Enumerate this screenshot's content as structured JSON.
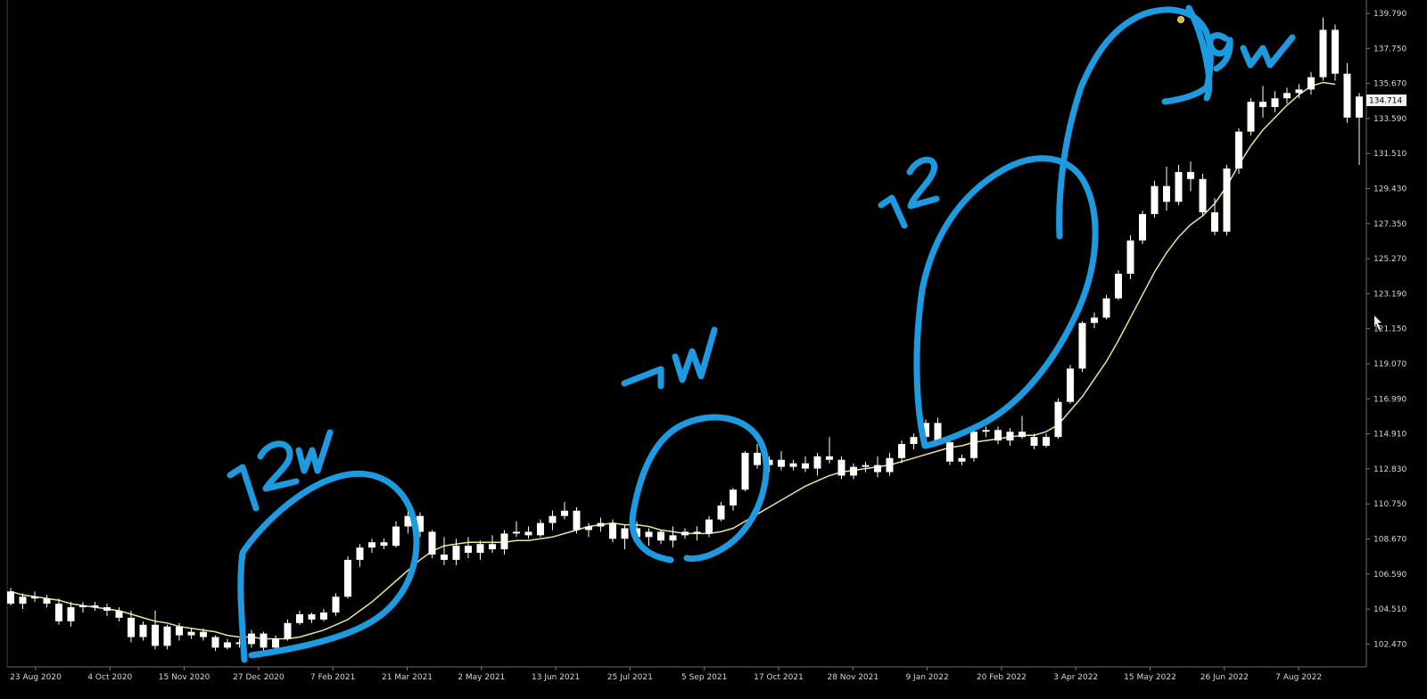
{
  "chart_data": {
    "type": "candlestick",
    "title": "",
    "xlabel": "",
    "ylabel": "",
    "ylim": [
      102.2,
      140.2
    ],
    "y_ticks": [
      "139.790",
      "137.750",
      "135.670",
      "133.590",
      "131.510",
      "129.430",
      "127.350",
      "125.270",
      "123.190",
      "121.150",
      "119.070",
      "116.990",
      "114.910",
      "112.830",
      "110.750",
      "108.670",
      "106.590",
      "104.510",
      "102.470"
    ],
    "x_ticks": [
      "23 Aug 2020",
      "4 Oct 2020",
      "15 Nov 2020",
      "27 Dec 2020",
      "7 Feb 2021",
      "21 Mar 2021",
      "2 May 2021",
      "13 Jun 2021",
      "25 Jul 2021",
      "5 Sep 2021",
      "17 Oct 2021",
      "28 Nov 2021",
      "9 Jan 2022",
      "20 Feb 2022",
      "3 Apr 2022",
      "15 May 2022",
      "26 Jun 2022",
      "7 Aug 2022"
    ],
    "current_price": "134.714",
    "grid": false,
    "background": "#000000",
    "colors": {
      "bull": "#ffffff",
      "bear": "#ffffff",
      "moving_average": "#e9e49a",
      "annotation": "#1e9be0",
      "axis_text": "#d8d8d8"
    },
    "series": [
      {
        "kind": "candles",
        "values": [
          [
            106.5,
            106.7,
            105.7,
            105.8
          ],
          [
            105.8,
            106.4,
            105.5,
            106.2
          ],
          [
            106.2,
            106.5,
            105.9,
            106.1
          ],
          [
            106.1,
            106.3,
            105.6,
            105.8
          ],
          [
            105.8,
            106.1,
            104.6,
            104.8
          ],
          [
            104.8,
            105.9,
            104.5,
            105.6
          ],
          [
            105.6,
            105.9,
            105.3,
            105.7
          ],
          [
            105.7,
            105.9,
            105.4,
            105.6
          ],
          [
            105.6,
            105.8,
            105.1,
            105.4
          ],
          [
            105.4,
            105.6,
            104.8,
            105.0
          ],
          [
            105.0,
            105.4,
            103.6,
            103.9
          ],
          [
            103.9,
            104.8,
            103.7,
            104.6
          ],
          [
            104.6,
            105.4,
            103.2,
            103.4
          ],
          [
            103.4,
            104.6,
            103.2,
            104.5
          ],
          [
            104.5,
            104.7,
            103.7,
            104.0
          ],
          [
            104.0,
            104.4,
            103.8,
            104.2
          ],
          [
            104.2,
            104.4,
            103.7,
            103.9
          ],
          [
            103.9,
            104.0,
            103.1,
            103.3
          ],
          [
            103.3,
            103.8,
            103.2,
            103.6
          ],
          [
            103.6,
            103.8,
            103.3,
            103.5
          ],
          [
            103.5,
            104.3,
            103.3,
            104.1
          ],
          [
            104.1,
            104.2,
            103.1,
            103.3
          ],
          [
            103.3,
            104.0,
            103.2,
            103.8
          ],
          [
            103.8,
            104.9,
            103.7,
            104.7
          ],
          [
            104.7,
            105.4,
            104.6,
            105.2
          ],
          [
            105.2,
            105.3,
            104.7,
            104.9
          ],
          [
            104.9,
            105.5,
            104.8,
            105.3
          ],
          [
            105.3,
            106.4,
            105.1,
            106.2
          ],
          [
            106.2,
            108.5,
            106.1,
            108.3
          ],
          [
            108.3,
            109.2,
            107.9,
            109.0
          ],
          [
            109.0,
            109.5,
            108.7,
            109.3
          ],
          [
            109.3,
            109.5,
            108.9,
            109.1
          ],
          [
            109.1,
            110.5,
            109.0,
            110.2
          ],
          [
            110.2,
            111.1,
            109.8,
            110.8
          ],
          [
            110.8,
            111.0,
            109.6,
            109.9
          ],
          [
            109.9,
            110.0,
            108.4,
            108.6
          ],
          [
            108.6,
            109.6,
            108.0,
            108.3
          ],
          [
            108.3,
            109.5,
            108.0,
            109.1
          ],
          [
            109.1,
            109.6,
            108.4,
            108.7
          ],
          [
            108.7,
            109.4,
            108.3,
            109.2
          ],
          [
            109.2,
            109.7,
            108.7,
            108.9
          ],
          [
            108.9,
            110.0,
            108.6,
            109.8
          ],
          [
            109.8,
            110.5,
            109.6,
            109.9
          ],
          [
            109.9,
            110.2,
            109.5,
            109.7
          ],
          [
            109.7,
            110.6,
            109.6,
            110.4
          ],
          [
            110.4,
            111.1,
            110.0,
            110.8
          ],
          [
            110.8,
            111.6,
            110.6,
            111.1
          ],
          [
            111.1,
            111.3,
            109.8,
            110.0
          ],
          [
            110.0,
            110.4,
            109.6,
            110.2
          ],
          [
            110.2,
            110.7,
            109.9,
            110.4
          ],
          [
            110.4,
            110.6,
            109.3,
            109.5
          ],
          [
            109.5,
            110.3,
            108.9,
            110.1
          ],
          [
            110.1,
            110.5,
            109.4,
            109.6
          ],
          [
            109.6,
            110.1,
            109.1,
            109.9
          ],
          [
            109.9,
            110.0,
            109.2,
            109.4
          ],
          [
            109.4,
            110.2,
            109.0,
            109.7
          ],
          [
            109.7,
            110.1,
            109.5,
            109.9
          ],
          [
            109.9,
            110.2,
            109.4,
            109.8
          ],
          [
            109.8,
            110.8,
            109.6,
            110.6
          ],
          [
            110.6,
            111.6,
            110.5,
            111.4
          ],
          [
            111.4,
            112.4,
            111.1,
            112.3
          ],
          [
            112.3,
            114.5,
            112.2,
            114.4
          ],
          [
            114.4,
            114.9,
            113.5,
            113.7
          ],
          [
            113.7,
            114.2,
            113.3,
            114.0
          ],
          [
            114.0,
            114.5,
            113.4,
            113.6
          ],
          [
            113.6,
            114.0,
            113.4,
            113.8
          ],
          [
            113.8,
            114.2,
            113.3,
            113.5
          ],
          [
            113.5,
            114.4,
            113.1,
            114.2
          ],
          [
            114.2,
            115.3,
            113.8,
            114.0
          ],
          [
            114.0,
            114.2,
            112.9,
            113.1
          ],
          [
            113.1,
            113.8,
            112.9,
            113.6
          ],
          [
            113.6,
            113.9,
            113.3,
            113.7
          ],
          [
            113.7,
            114.2,
            113.0,
            113.3
          ],
          [
            113.3,
            114.4,
            113.1,
            114.1
          ],
          [
            114.1,
            115.1,
            113.8,
            114.9
          ],
          [
            114.9,
            115.5,
            114.6,
            115.3
          ],
          [
            115.3,
            116.3,
            115.0,
            116.1
          ],
          [
            116.1,
            116.4,
            114.8,
            115.0
          ],
          [
            115.0,
            115.3,
            113.7,
            113.9
          ],
          [
            113.9,
            114.3,
            113.7,
            114.1
          ],
          [
            114.1,
            115.8,
            113.9,
            115.6
          ],
          [
            115.6,
            115.9,
            115.3,
            115.7
          ],
          [
            115.7,
            115.9,
            114.9,
            115.1
          ],
          [
            115.1,
            115.8,
            114.8,
            115.6
          ],
          [
            115.6,
            116.5,
            115.2,
            115.3
          ],
          [
            115.3,
            115.5,
            114.6,
            114.8
          ],
          [
            114.8,
            115.5,
            114.7,
            115.3
          ],
          [
            115.3,
            117.5,
            115.2,
            117.3
          ],
          [
            117.3,
            119.4,
            117.2,
            119.2
          ],
          [
            119.2,
            121.9,
            119.0,
            121.8
          ],
          [
            121.8,
            122.4,
            121.5,
            122.1
          ],
          [
            122.1,
            123.4,
            122.0,
            123.2
          ],
          [
            123.2,
            124.8,
            123.1,
            124.6
          ],
          [
            124.6,
            126.8,
            124.3,
            126.5
          ],
          [
            126.5,
            128.2,
            126.3,
            128.0
          ],
          [
            128.0,
            129.9,
            127.8,
            129.6
          ],
          [
            129.6,
            130.7,
            128.2,
            128.7
          ],
          [
            128.7,
            130.8,
            128.5,
            130.4
          ],
          [
            130.4,
            131.0,
            129.3,
            130.0
          ],
          [
            130.0,
            130.3,
            127.9,
            128.1
          ],
          [
            128.1,
            128.9,
            126.8,
            127.0
          ],
          [
            127.0,
            130.8,
            126.8,
            130.6
          ],
          [
            130.6,
            132.9,
            130.3,
            132.7
          ],
          [
            132.7,
            134.6,
            132.5,
            134.4
          ],
          [
            134.4,
            135.3,
            133.5,
            134.1
          ],
          [
            134.1,
            135.0,
            133.8,
            134.6
          ],
          [
            134.6,
            135.2,
            134.3,
            134.9
          ],
          [
            134.9,
            135.4,
            134.6,
            135.1
          ],
          [
            135.1,
            136.1,
            134.8,
            135.8
          ],
          [
            135.8,
            139.2,
            135.6,
            138.5
          ],
          [
            138.5,
            138.8,
            135.6,
            136.0
          ],
          [
            136.0,
            136.6,
            133.2,
            133.5
          ],
          [
            133.5,
            134.9,
            130.8,
            134.7
          ]
        ]
      },
      {
        "kind": "moving_average",
        "values": [
          106.5,
          106.3,
          106.2,
          106.1,
          106.0,
          105.8,
          105.7,
          105.6,
          105.5,
          105.4,
          105.2,
          105.0,
          104.8,
          104.7,
          104.5,
          104.4,
          104.3,
          104.2,
          104.0,
          103.9,
          103.9,
          103.8,
          103.8,
          103.8,
          103.9,
          104.1,
          104.3,
          104.6,
          104.9,
          105.4,
          105.9,
          106.5,
          107.1,
          107.7,
          108.3,
          108.8,
          109.1,
          109.2,
          109.3,
          109.3,
          109.3,
          109.3,
          109.4,
          109.4,
          109.5,
          109.6,
          109.8,
          110.0,
          110.2,
          110.3,
          110.4,
          110.3,
          110.3,
          110.2,
          110.0,
          109.9,
          109.8,
          109.8,
          109.8,
          109.9,
          110.1,
          110.5,
          110.9,
          111.3,
          111.7,
          112.1,
          112.5,
          112.8,
          113.1,
          113.3,
          113.4,
          113.5,
          113.6,
          113.7,
          113.9,
          114.1,
          114.3,
          114.5,
          114.7,
          114.8,
          115.0,
          115.1,
          115.2,
          115.3,
          115.4,
          115.4,
          115.6,
          116.0,
          116.8,
          117.6,
          118.6,
          119.6,
          120.8,
          122.1,
          123.4,
          124.7,
          125.8,
          126.7,
          127.4,
          127.9,
          128.6,
          129.6,
          130.8,
          131.9,
          132.8,
          133.5,
          134.2,
          134.8,
          135.3,
          135.5,
          135.4
        ]
      }
    ],
    "annotations": [
      "12w",
      "7w",
      "12",
      "9w"
    ]
  }
}
